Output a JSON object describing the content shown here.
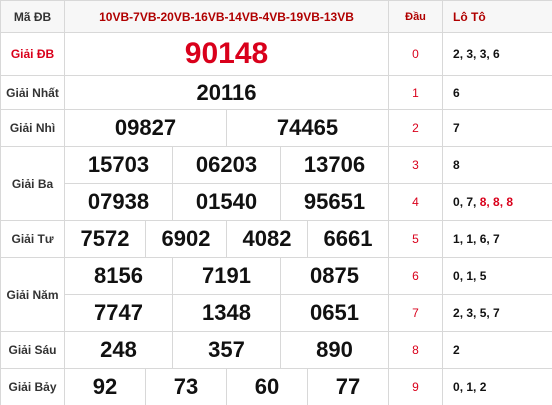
{
  "header": {
    "code_label": "Mã ĐB",
    "code_value": "10VB-7VB-20VB-16VB-14VB-4VB-19VB-13VB",
    "dau_label": "Đầu",
    "loto_label": "Lô Tô"
  },
  "prizes": {
    "db": {
      "label": "Giải ĐB",
      "numbers": [
        "90148"
      ]
    },
    "g1": {
      "label": "Giải Nhất",
      "numbers": [
        "20116"
      ]
    },
    "g2": {
      "label": "Giải Nhì",
      "numbers": [
        "09827",
        "74465"
      ]
    },
    "g3": {
      "label": "Giải Ba",
      "numbers": [
        "15703",
        "06203",
        "13706",
        "07938",
        "01540",
        "95651"
      ]
    },
    "g4": {
      "label": "Giải Tư",
      "numbers": [
        "7572",
        "6902",
        "4082",
        "6661"
      ]
    },
    "g5": {
      "label": "Giải Năm",
      "numbers": [
        "8156",
        "7191",
        "0875",
        "7747",
        "1348",
        "0651"
      ]
    },
    "g6": {
      "label": "Giải Sáu",
      "numbers": [
        "248",
        "357",
        "890"
      ]
    },
    "g7": {
      "label": "Giải Bảy",
      "numbers": [
        "92",
        "73",
        "60",
        "77"
      ]
    }
  },
  "loto": [
    {
      "dau": "0",
      "values": "2, 3, 3, 6"
    },
    {
      "dau": "1",
      "values": "6"
    },
    {
      "dau": "2",
      "values": "7"
    },
    {
      "dau": "3",
      "values": "8"
    },
    {
      "dau": "4",
      "values_plain": "0, 7,",
      "values_highlight": "8, 8, 8"
    },
    {
      "dau": "5",
      "values": "1, 1, 6, 7"
    },
    {
      "dau": "6",
      "values": "0, 1, 5"
    },
    {
      "dau": "7",
      "values": "2, 3, 5, 7"
    },
    {
      "dau": "8",
      "values": "2"
    },
    {
      "dau": "9",
      "values": "0, 1, 2"
    }
  ]
}
